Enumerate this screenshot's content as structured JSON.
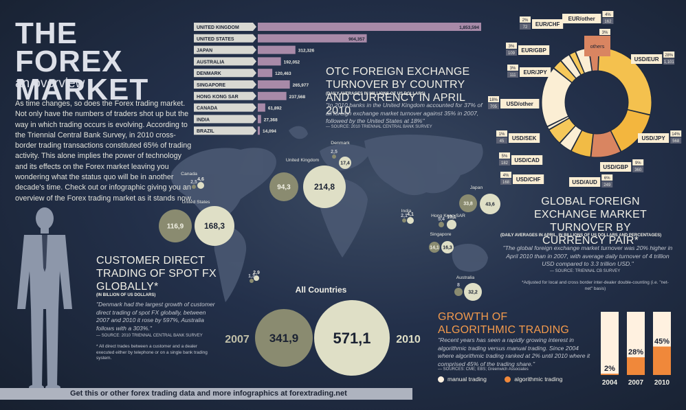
{
  "header": {
    "title": "THE FOREX MARKET",
    "subtitle": "an overview",
    "intro": "As time changes, so does the Forex trading market. Not only have the numbers of traders shot up but the way in which trading occurs is evolving. According to the Triennial Central Bank Survey, in 2010 cross-border trading transactions constituted 65% of trading activity. This alone implies the power of technology and its effects on the Forex market leaving you wondering what the status quo will be in another decade's time. Check out or infographic giving you an overview of the Forex trading market as it stands now."
  },
  "otc": {
    "title": "OTC FOREIGN EXCHANGE TURNOVER BY COUNTRY AND CURRENCY IN APRIL 2010",
    "unit": "(DAILY AVERAGES IN MILLIONS OF US DOLLARS)",
    "quote": "\"In 2010 banks in the United Kingdom accounted for 37% of all foreign exchange market turnover against 35% in 2007, followed by the United States at 18%\"",
    "source": "— SOURCE: 2010 TRIENNAL CENTRAL BANK SURVEY"
  },
  "pairs": {
    "title": "GLOBAL FOREIGN EXCHANGE MARKET TURNOVER BY CURRENCY PAIR*",
    "unit": "(DAILY AVERAGES IN APRIL, IN BILLIONS OF US DOLLARS AND PERCENTAGES)",
    "quote": "\"The global foreign exchange market turnover was 20% higher in April 2010 than in 2007, with average daily turnover of 4 trillion USD compared to 3.3 trillion USD.\"",
    "source": "— SOURCE: TRIENNAL CB SURVEY",
    "note": "*Adjusted for local and cross border inter-dealer double-counting (i.e. \"net-net\" basis)"
  },
  "customer": {
    "title": "CUSTOMER DIRECT TRADING OF SPOT FX GLOBALLY*",
    "unit": "(IN BILLION OF US DOLLARS)",
    "quote": "\"Denmark had the largest growth of customer direct trading of spot FX globally, between 2007 and 2010 it rose by 597%, Australia follows with a 303%.\"",
    "source": "— SOURCE: 2010 TRIENNAL CENTRAL BANK SURVEY",
    "note": "* All direct trades between a customer and a dealer executed either by telephone or on a single bank trading system."
  },
  "algo": {
    "title": "GROWTH OF ALGORITHMIC TRADING",
    "quote": "\"Recent years has seen a rapidly growing interest in algorithmic trading versus manual trading. Since 2004 where algorithmic trading ranked at 2% until 2010 where it comprised 45% of the trading share.\"",
    "source": "— SOURCES: CME; EBS; Greenwich Associates",
    "legend_manual": "manual trading",
    "legend_algo": "algorithmic trading"
  },
  "footer": {
    "text": "Get this or other forex trading data and more infographics at forextrading.net"
  },
  "colors": {
    "background": "#1f2a3d",
    "bar": "#a88aa8",
    "bubble_2010": "#dfdfc6",
    "bubble_2007": "#8a8b70",
    "orange": "#f0883a",
    "cream": "#fff1e0"
  },
  "icons": [
    "businessman-silhouette",
    "world-map"
  ],
  "chart_data": [
    {
      "type": "bar",
      "orientation": "horizontal",
      "categories": [
        "UNITED KINGDOM",
        "UNITED STATES",
        "JAPAN",
        "AUSTRALIA",
        "DENMARK",
        "SINGAPORE",
        "HONG KONG SAR",
        "CANADA",
        "INDIA",
        "BRAZIL"
      ],
      "values": [
        1853594,
        904357,
        312326,
        192052,
        120463,
        265977,
        237568,
        61892,
        27368,
        14094
      ],
      "labels": [
        "1,853,594",
        "904,357",
        "312,326",
        "192,052",
        "120,463",
        "265,977",
        "237,568",
        "61,892",
        "27,368",
        "14,094"
      ]
    },
    {
      "type": "pie",
      "donut": true,
      "slices": [
        {
          "label": "USD/EUR",
          "pct_label": "28%",
          "value_label": "1,101",
          "pct": 28,
          "color": "#f4c14e"
        },
        {
          "label": "USD/JPY",
          "pct_label": "14%",
          "value_label": "568",
          "pct": 14,
          "color": "#f3b63e"
        },
        {
          "label": "USD/GBP",
          "pct_label": "9%",
          "value_label": "360",
          "pct": 9,
          "color": "#d98561"
        },
        {
          "label": "USD/AUD",
          "pct_label": "6%",
          "value_label": "249",
          "pct": 6,
          "color": "#f1bb45"
        },
        {
          "label": "USD/CHF",
          "pct_label": "4%",
          "value_label": "168",
          "pct": 4,
          "color": "#fbeed4"
        },
        {
          "label": "USD/CAD",
          "pct_label": "5%",
          "value_label": "182",
          "pct": 5,
          "color": "#f6c85a"
        },
        {
          "label": "USD/SEK",
          "pct_label": "1%",
          "value_label": "45",
          "pct": 1,
          "color": "#fbeed4"
        },
        {
          "label": "USD/other",
          "pct_label": "18%",
          "value_label": "705",
          "pct": 18,
          "color": "#fbeed4"
        },
        {
          "label": "EUR/JPY",
          "pct_label": "3%",
          "value_label": "111",
          "pct": 3,
          "color": "#f6c85a"
        },
        {
          "label": "EUR/GBP",
          "pct_label": "3%",
          "value_label": "109",
          "pct": 3,
          "color": "#fbeed4"
        },
        {
          "label": "EUR/CHF",
          "pct_label": "2%",
          "value_label": "72",
          "pct": 2,
          "color": "#f6c85a"
        },
        {
          "label": "EUR/other",
          "pct_label": "4%",
          "value_label": "162",
          "pct": 4,
          "color": "#fbeed4"
        },
        {
          "label": "others",
          "pct_label": "3%",
          "value_label": "",
          "pct": 3,
          "color": "#d98561"
        }
      ]
    },
    {
      "type": "scatter",
      "bubbles": true,
      "series": [
        "2007",
        "2010"
      ],
      "points": [
        {
          "label": "Canada",
          "v2007": "2,5",
          "v2010": "4,6",
          "r07": 3,
          "r10": 5
        },
        {
          "label": "United States",
          "v2007": "116,9",
          "v2010": "168,3",
          "r07": 24,
          "r10": 29
        },
        {
          "label": "United Kingdom",
          "v2007": "94,3",
          "v2010": "214,8",
          "r07": 21,
          "r10": 31
        },
        {
          "label": "Denmark",
          "v2007": "2,5",
          "v2010": "17,4",
          "r07": 3,
          "r10": 9
        },
        {
          "label": "India",
          "v2007": "2,1",
          "v2010": "4,1",
          "r07": 3,
          "r10": 5
        },
        {
          "label": "Hong Kong SAR",
          "v2007": "5,4",
          "v2010": "10,1",
          "r07": 4,
          "r10": 7
        },
        {
          "label": "Singapore",
          "v2007": "14,1",
          "v2010": "16,3",
          "r07": 8,
          "r10": 9
        },
        {
          "label": "Japan",
          "v2007": "33,8",
          "v2010": "43,6",
          "r07": 13,
          "r10": 15
        },
        {
          "label": "Australia",
          "v2007": "8",
          "v2010": "32,2",
          "r07": 6,
          "r10": 13
        },
        {
          "label": "",
          "v2007": "1,3",
          "v2010": "2,9",
          "r07": 3,
          "r10": 4
        }
      ],
      "all_countries": {
        "label": "All Countries",
        "v2007": "341,9",
        "v2010": "571,1",
        "year1": "2007",
        "year2": "2010"
      }
    },
    {
      "type": "bar",
      "stacked": true,
      "categories": [
        "2004",
        "2007",
        "2010"
      ],
      "series": [
        {
          "name": "algorithmic trading",
          "values": [
            2,
            28,
            45
          ]
        },
        {
          "name": "manual trading",
          "values": [
            98,
            72,
            55
          ]
        }
      ],
      "labels": [
        "2%",
        "28%",
        "45%"
      ]
    }
  ]
}
